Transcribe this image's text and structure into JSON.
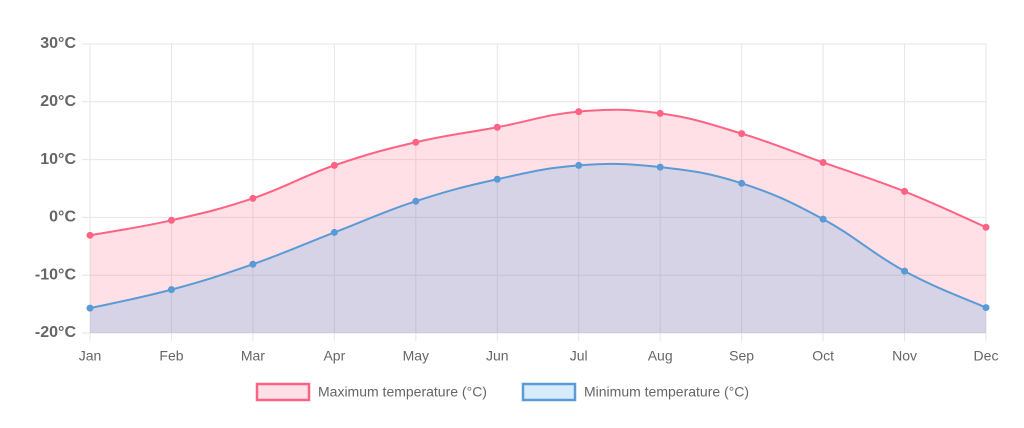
{
  "chart_data": {
    "type": "line",
    "categories": [
      "Jan",
      "Feb",
      "Mar",
      "Apr",
      "May",
      "Jun",
      "Jul",
      "Aug",
      "Sep",
      "Oct",
      "Nov",
      "Dec"
    ],
    "series": [
      {
        "name": "Maximum temperature (°C)",
        "color": "#ff6384",
        "fill": "rgba(255,99,132,0.2)",
        "values": [
          -3.1,
          -0.5,
          3.3,
          9.0,
          13.0,
          15.6,
          18.3,
          18.0,
          14.5,
          9.5,
          4.5,
          -1.7
        ]
      },
      {
        "name": "Minimum temperature (°C)",
        "color": "#5b9bd5",
        "fill": "rgba(54,162,235,0.2)",
        "values": [
          -15.7,
          -12.5,
          -8.1,
          -2.6,
          2.8,
          6.6,
          9.0,
          8.7,
          5.9,
          -0.3,
          -9.3,
          -15.6
        ]
      }
    ],
    "ylim": [
      -20,
      30
    ],
    "yticks": [
      {
        "value": -20,
        "label": "-20°C"
      },
      {
        "value": -10,
        "label": "-10°C"
      },
      {
        "value": 0,
        "label": "0°C"
      },
      {
        "value": 10,
        "label": "10°C"
      },
      {
        "value": 20,
        "label": "20°C"
      },
      {
        "value": 30,
        "label": "30°C"
      }
    ],
    "grid": true,
    "legend": "bottom"
  }
}
